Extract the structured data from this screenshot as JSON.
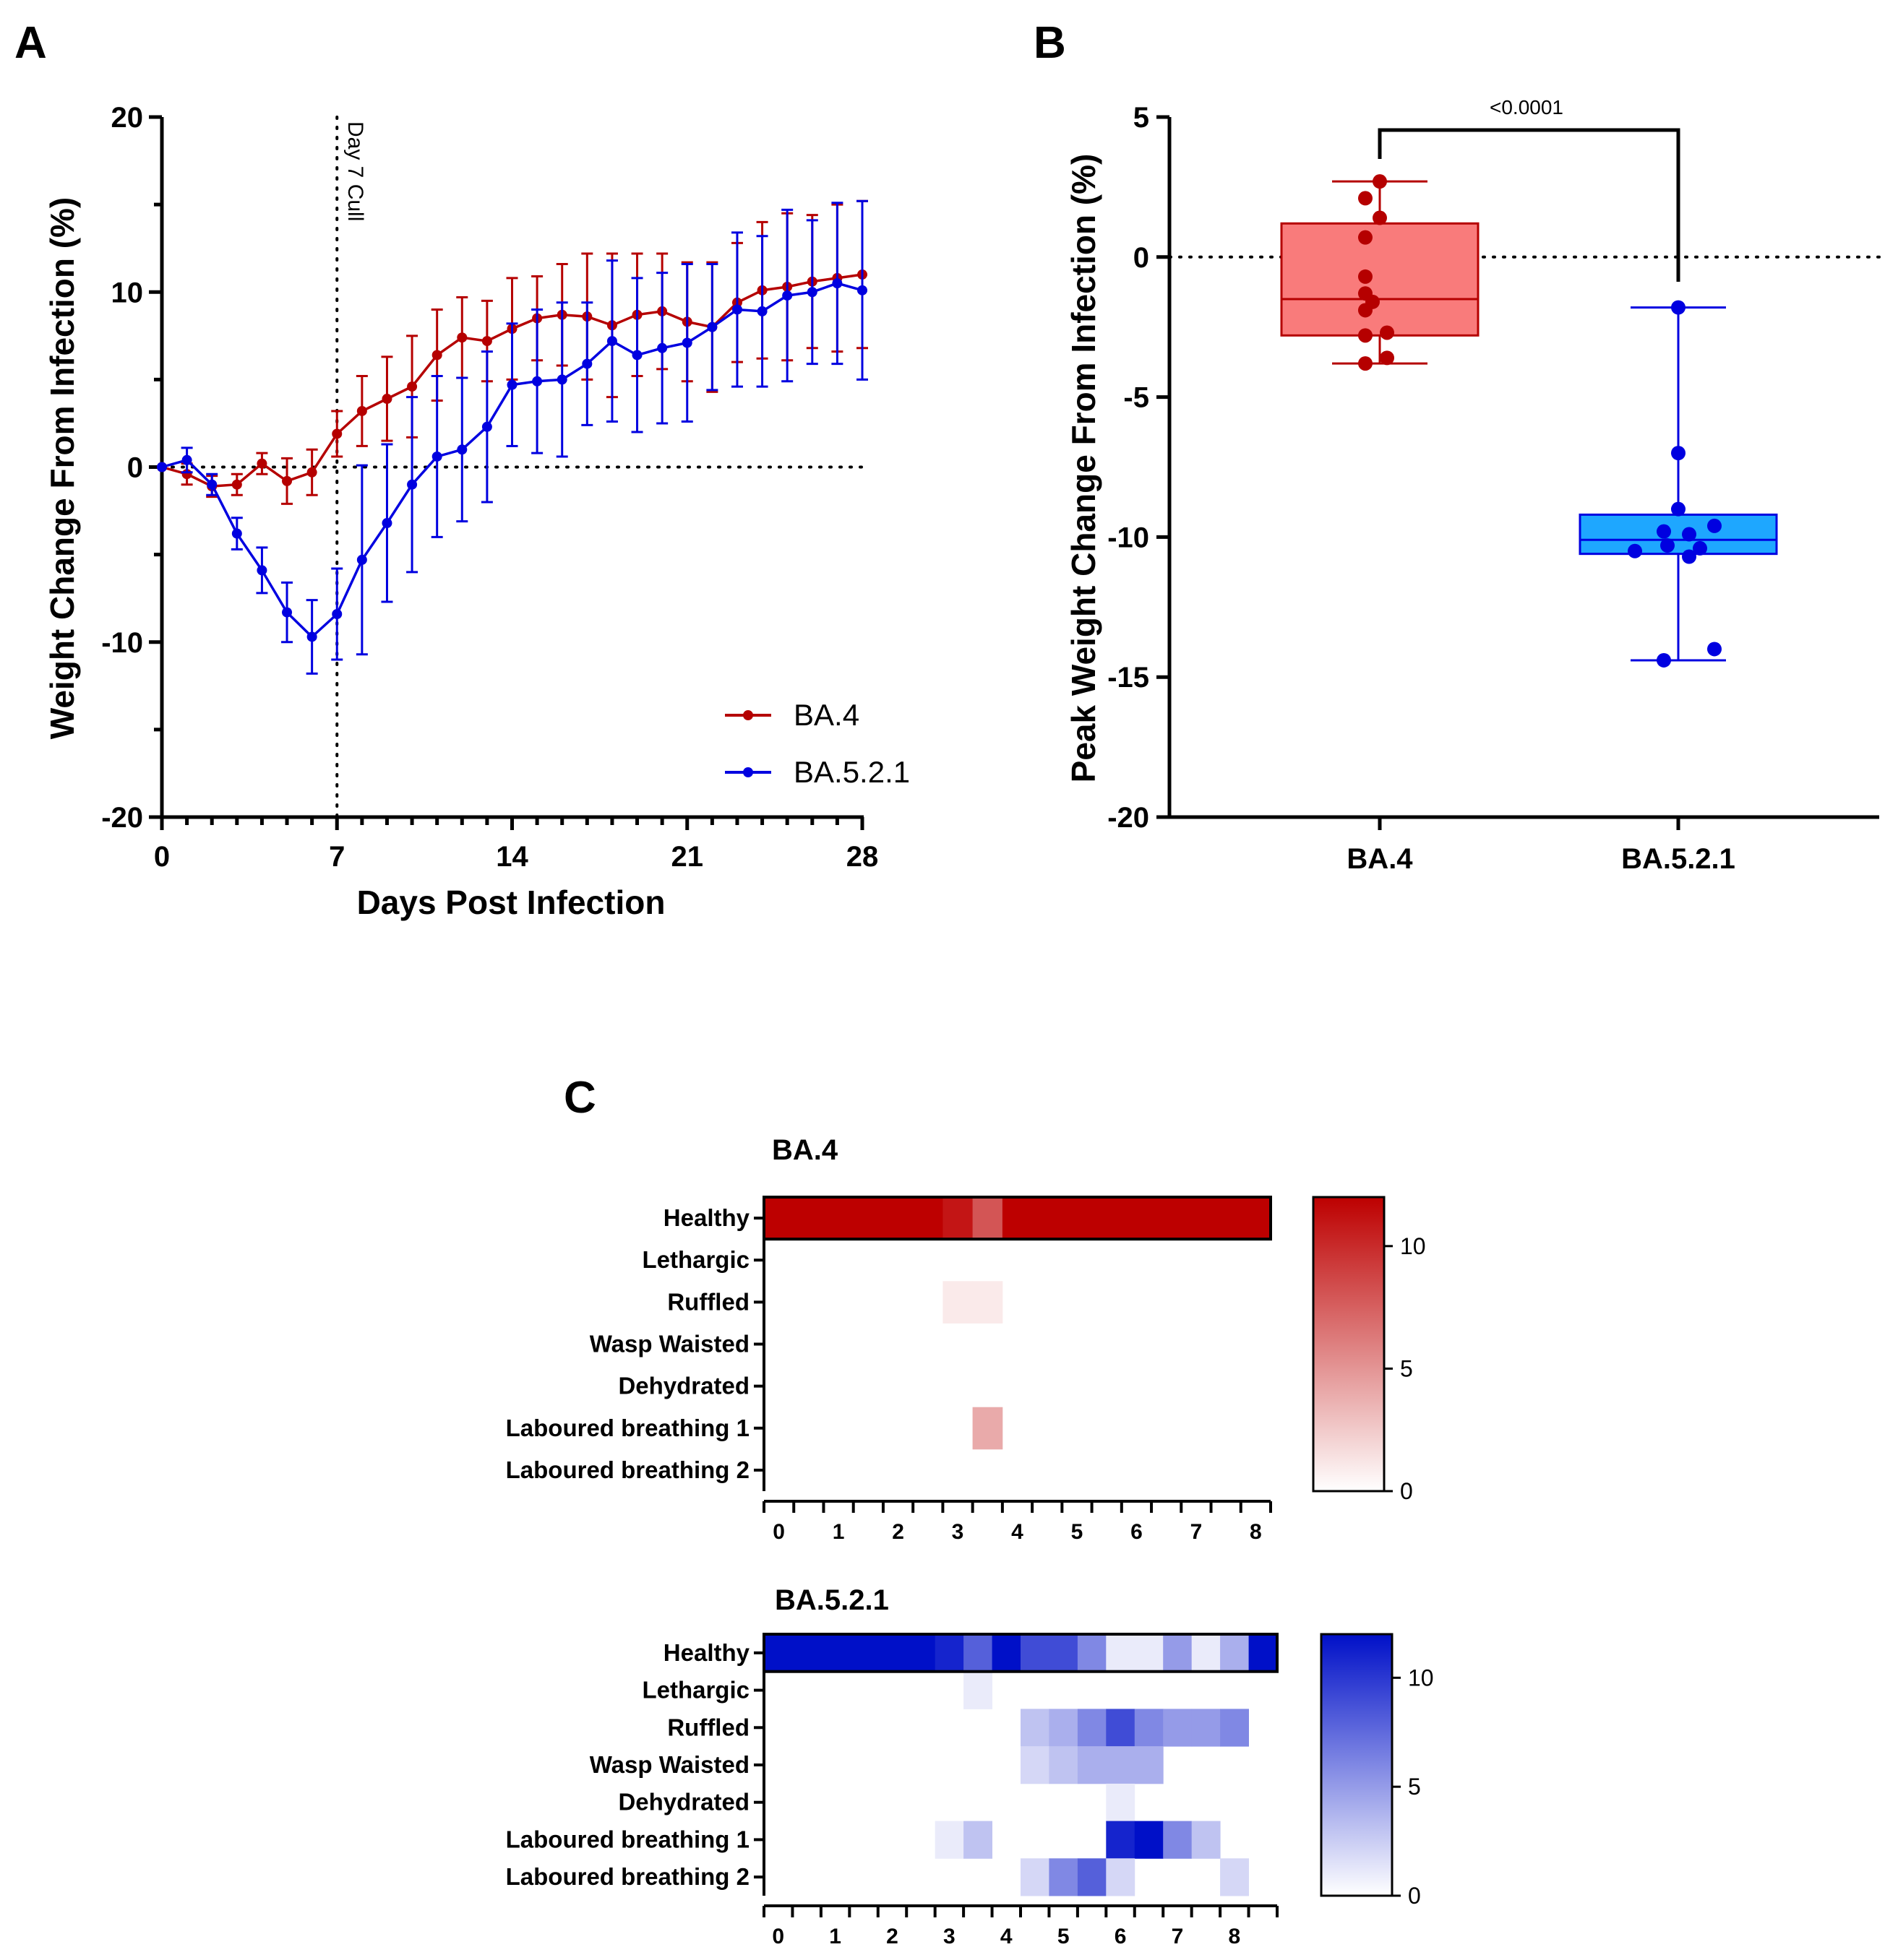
{
  "colors": {
    "ba4": "#b50000",
    "ba521": "#0000e0",
    "ba4_box_fill": "#f97b7b",
    "ba521_box_fill": "#1ea7ff",
    "ba4_heat_max": "#bd0000",
    "ba521_heat_max": "#0010c8"
  },
  "chart_data": [
    {
      "panel": "A",
      "type": "line",
      "xlabel": "Days Post Infection",
      "ylabel": "Weight Change From Infection (%)",
      "xlim": [
        0,
        28
      ],
      "ylim": [
        -20,
        20
      ],
      "xticks": [
        "0",
        "7",
        "14",
        "21",
        "28"
      ],
      "yticks": [
        "-20",
        "-10",
        "0",
        "10",
        "20"
      ],
      "reference_line_label": "Day 7 Cull",
      "reference_line_x": 7,
      "series": [
        {
          "name": "BA.4",
          "x": [
            0,
            1,
            2,
            3,
            4,
            5,
            6,
            7,
            8,
            9,
            10,
            11,
            12,
            13,
            14,
            15,
            16,
            17,
            18,
            19,
            20,
            21,
            22,
            23,
            24,
            25,
            26,
            27,
            28
          ],
          "values": [
            0,
            -0.4,
            -1.1,
            -1.0,
            0.2,
            -0.8,
            -0.3,
            1.9,
            3.2,
            3.9,
            4.6,
            6.4,
            7.4,
            7.2,
            7.9,
            8.5,
            8.7,
            8.6,
            8.1,
            8.7,
            8.9,
            8.3,
            8.0,
            9.4,
            10.1,
            10.3,
            10.6,
            10.8,
            11.0
          ],
          "errors": [
            0,
            0.6,
            0.6,
            0.6,
            0.6,
            1.3,
            1.3,
            1.3,
            2.0,
            2.4,
            2.9,
            2.6,
            2.3,
            2.3,
            2.9,
            2.4,
            2.9,
            3.6,
            4.1,
            3.5,
            3.3,
            3.4,
            3.7,
            3.4,
            3.9,
            4.2,
            3.8,
            4.2,
            4.2
          ]
        },
        {
          "name": "BA.5.2.1",
          "x": [
            0,
            1,
            2,
            3,
            4,
            5,
            6,
            7,
            8,
            9,
            10,
            11,
            12,
            13,
            14,
            15,
            16,
            17,
            18,
            19,
            20,
            21,
            22,
            23,
            24,
            25,
            26,
            27,
            28
          ],
          "values": [
            0,
            0.4,
            -1.0,
            -3.8,
            -5.9,
            -8.3,
            -9.7,
            -8.4,
            -5.3,
            -3.2,
            -1.0,
            0.6,
            1.0,
            2.3,
            4.7,
            4.9,
            5.0,
            5.9,
            7.2,
            6.4,
            6.8,
            7.1,
            8.0,
            9.0,
            8.9,
            9.8,
            10.0,
            10.5,
            10.1
          ],
          "errors": [
            0,
            0.7,
            0.6,
            0.9,
            1.3,
            1.7,
            2.1,
            2.6,
            5.4,
            4.5,
            5.0,
            4.6,
            4.1,
            4.3,
            3.5,
            4.1,
            4.4,
            3.5,
            4.6,
            4.4,
            4.3,
            4.5,
            3.6,
            4.4,
            4.3,
            4.9,
            4.1,
            4.6,
            5.1
          ]
        }
      ]
    },
    {
      "panel": "B",
      "type": "scatter",
      "subtype": "box-with-points",
      "ylabel": "Peak Weight Change From Infection (%)",
      "ylim": [
        -20,
        5
      ],
      "yticks": [
        "-20",
        "-15",
        "-10",
        "-5",
        "0",
        "5"
      ],
      "categories": [
        "BA.4",
        "BA.5.2.1"
      ],
      "significance_label": "<0.0001",
      "groups": [
        {
          "name": "BA.4",
          "min": -3.8,
          "q1": -2.8,
          "median": -1.5,
          "q3": 1.2,
          "max": 2.7,
          "points": [
            2.7,
            2.1,
            1.4,
            0.7,
            -0.7,
            -1.3,
            -1.6,
            -1.9,
            -2.7,
            -2.8,
            -3.6,
            -3.8
          ]
        },
        {
          "name": "BA.5.2.1",
          "min": -14.4,
          "q1": -10.6,
          "median": -10.1,
          "q3": -9.2,
          "max": -1.8,
          "points": [
            -1.8,
            -7.0,
            -9.0,
            -9.6,
            -9.8,
            -9.9,
            -10.3,
            -10.4,
            -10.5,
            -10.7,
            -14.0,
            -14.4
          ]
        }
      ]
    },
    {
      "panel": "C",
      "type": "heatmap",
      "title": "BA.4",
      "rows": [
        "Healthy",
        "Lethargic",
        "Ruffled",
        "Wasp Waisted",
        "Dehydrated",
        "Laboured breathing 1",
        "Laboured breathing 2"
      ],
      "xticks": [
        "0",
        "1",
        "2",
        "3",
        "4",
        "5",
        "6",
        "7",
        "8"
      ],
      "colorbar_ticks": [
        "0",
        "5",
        "10"
      ],
      "vmax": 12,
      "values": [
        [
          12,
          12,
          12,
          12,
          12,
          12,
          11,
          8,
          12,
          12,
          12,
          12,
          12,
          12,
          12,
          12,
          12
        ],
        [
          0,
          0,
          0,
          0,
          0,
          0,
          0,
          0,
          0,
          0,
          0,
          0,
          0,
          0,
          0,
          0,
          0
        ],
        [
          0,
          0,
          0,
          0,
          0,
          0,
          1,
          1,
          0,
          0,
          0,
          0,
          0,
          0,
          0,
          0,
          0
        ],
        [
          0,
          0,
          0,
          0,
          0,
          0,
          0,
          0,
          0,
          0,
          0,
          0,
          0,
          0,
          0,
          0,
          0
        ],
        [
          0,
          0,
          0,
          0,
          0,
          0,
          0,
          0,
          0,
          0,
          0,
          0,
          0,
          0,
          0,
          0,
          0
        ],
        [
          0,
          0,
          0,
          0,
          0,
          0,
          0,
          4,
          0,
          0,
          0,
          0,
          0,
          0,
          0,
          0,
          0
        ],
        [
          0,
          0,
          0,
          0,
          0,
          0,
          0,
          0,
          0,
          0,
          0,
          0,
          0,
          0,
          0,
          0,
          0
        ]
      ]
    },
    {
      "panel": "C",
      "type": "heatmap",
      "title": "BA.5.2.1",
      "rows": [
        "Healthy",
        "Lethargic",
        "Ruffled",
        "Wasp Waisted",
        "Dehydrated",
        "Laboured breathing 1",
        "Laboured breathing 2"
      ],
      "xticks": [
        "0",
        "1",
        "2",
        "3",
        "4",
        "5",
        "6",
        "7",
        "8"
      ],
      "colorbar_ticks": [
        "0",
        "5",
        "10"
      ],
      "vmax": 12,
      "values": [
        [
          12,
          12,
          12,
          12,
          12,
          12,
          11,
          8,
          12,
          9,
          9,
          6,
          1,
          1,
          5,
          1,
          4,
          12
        ],
        [
          0,
          0,
          0,
          0,
          0,
          0,
          0,
          1,
          0,
          0,
          0,
          0,
          0,
          0,
          0,
          0,
          0,
          0
        ],
        [
          0,
          0,
          0,
          0,
          0,
          0,
          0,
          0,
          0,
          3,
          4,
          6,
          9,
          6,
          5,
          5,
          6,
          0
        ],
        [
          0,
          0,
          0,
          0,
          0,
          0,
          0,
          0,
          0,
          2,
          3,
          4,
          4,
          4,
          0,
          0,
          0,
          0
        ],
        [
          0,
          0,
          0,
          0,
          0,
          0,
          0,
          0,
          0,
          0,
          0,
          0,
          1,
          0,
          0,
          0,
          0,
          0
        ],
        [
          0,
          0,
          0,
          0,
          0,
          0,
          1,
          3,
          0,
          0,
          0,
          0,
          11,
          12,
          6,
          3,
          0,
          0
        ],
        [
          0,
          0,
          0,
          0,
          0,
          0,
          0,
          0,
          0,
          2,
          6,
          8,
          2,
          0,
          0,
          0,
          2,
          0
        ]
      ]
    }
  ]
}
